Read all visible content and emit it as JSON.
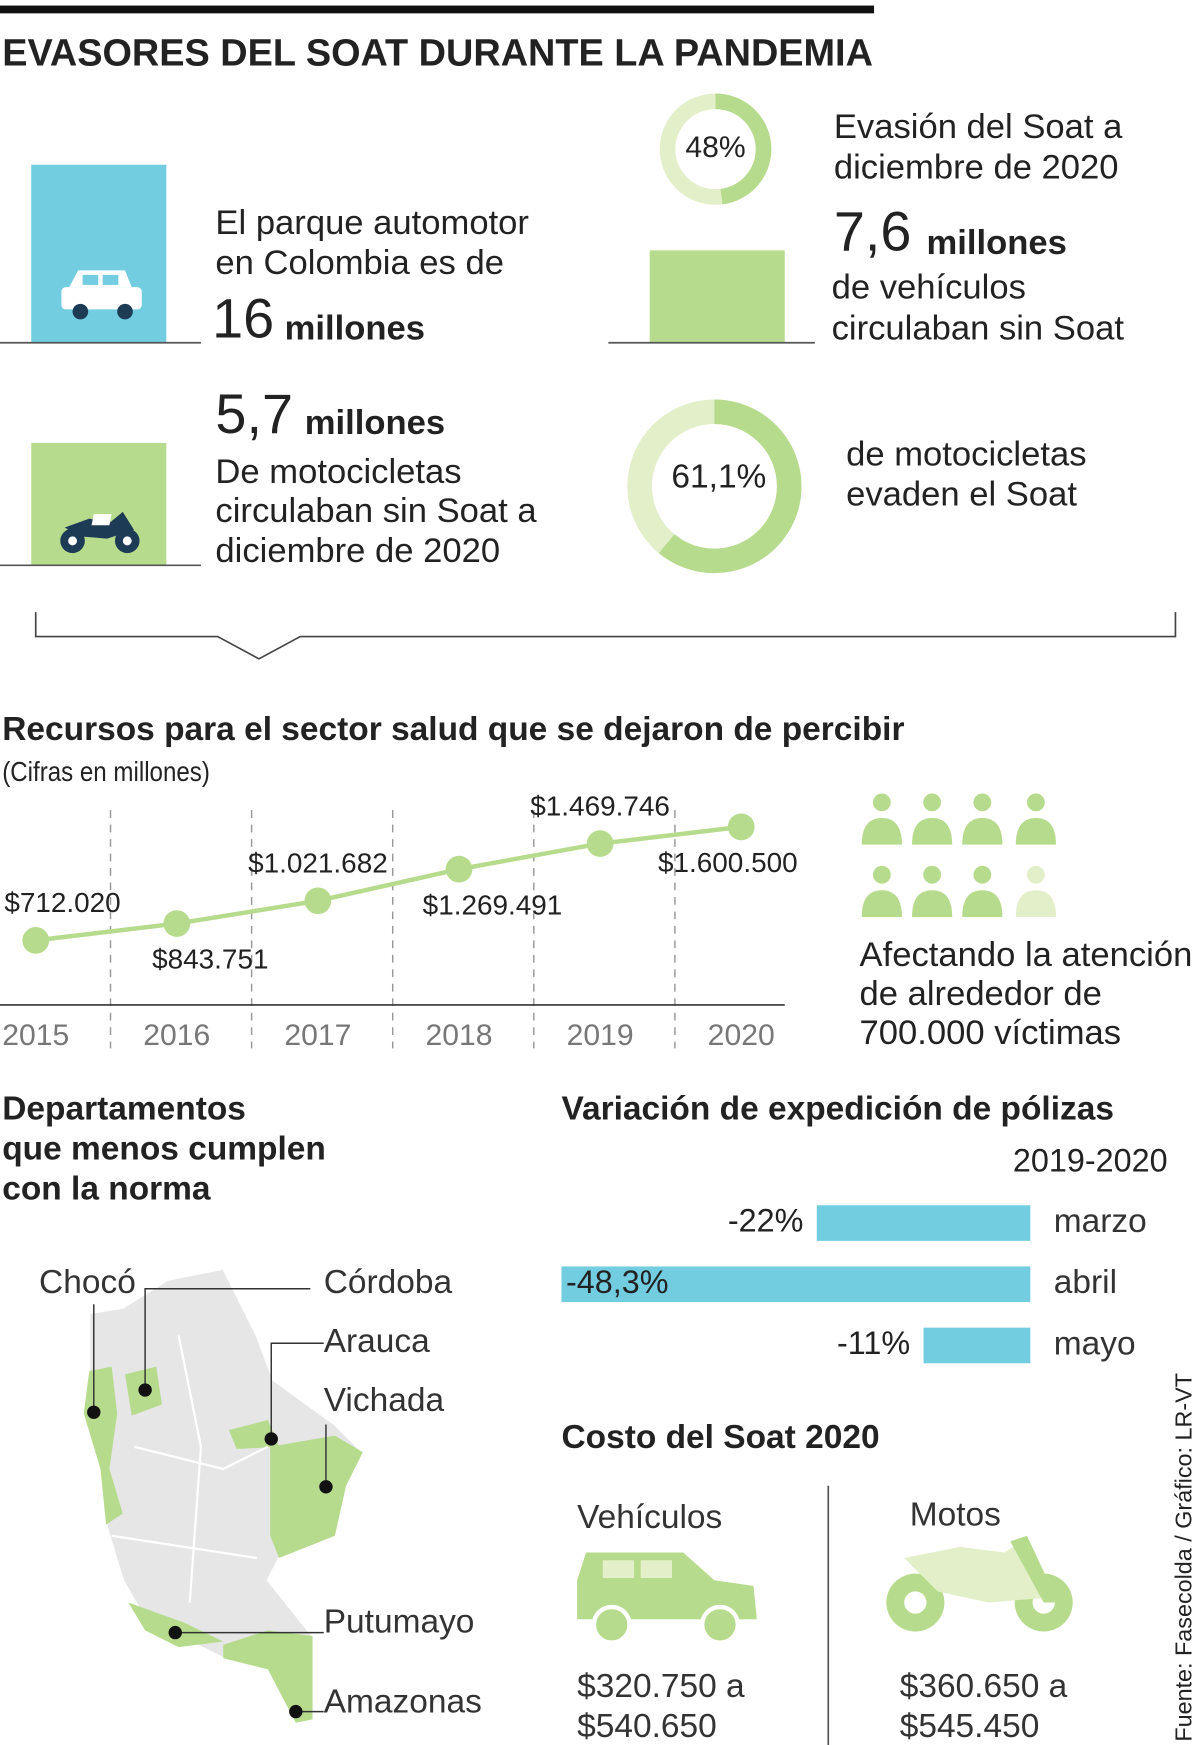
{
  "title": "EVASORES DEL SOAT DURANTE LA PANDEMIA",
  "stats": [
    {
      "text": [
        "El parque automotor",
        "en Colombia es de"
      ],
      "number": "16",
      "unit": "millones"
    },
    {
      "text": [
        "Evasión del Soat a",
        "diciembre de 2020"
      ],
      "donut": {
        "value": 48,
        "label": "48%"
      }
    },
    {
      "number": "7,6",
      "unit": "millones",
      "text": [
        "de vehículos",
        "circulaban sin Soat"
      ]
    },
    {
      "number": "5,7",
      "unit": "millones",
      "text": [
        "De motocicletas",
        "circulaban sin Soat a",
        "diciembre de 2020"
      ]
    },
    {
      "donut": {
        "value": 61.1,
        "label": "61,1%"
      },
      "text": [
        "de motocicletas",
        "evaden el Soat"
      ]
    }
  ],
  "chart_data": [
    {
      "type": "line",
      "title": "Recursos para el sector salud que se dejaron de percibir",
      "subtitle": "(Cifras en millones)",
      "categories": [
        "2015",
        "2016",
        "2017",
        "2018",
        "2019",
        "2020"
      ],
      "values": [
        712020,
        843751,
        1021682,
        1269491,
        1469746,
        1600500
      ],
      "value_labels": [
        "$712.020",
        "$843.751",
        "$1.021.682",
        "$1.269.491",
        "$1.469.746",
        "$1.600.500"
      ],
      "color": "#b7db8c"
    },
    {
      "type": "bar",
      "title": "Variación de expedición de pólizas",
      "subtitle": "2019-2020",
      "categories": [
        "marzo",
        "abril",
        "mayo"
      ],
      "values": [
        -22,
        -48.3,
        -11
      ],
      "value_labels": [
        "-22%",
        "-48,3%",
        "-11%"
      ],
      "color": "#72cde0"
    }
  ],
  "victims": [
    "Afectando la atención",
    "de alrededor de",
    "700.000 víctimas"
  ],
  "departments": {
    "title": [
      "Departamentos",
      "que menos cumplen",
      "con la norma"
    ],
    "names": [
      "Chocó",
      "Córdoba",
      "Arauca",
      "Vichada",
      "Putumayo",
      "Amazonas"
    ]
  },
  "cost": {
    "title": "Costo del Soat 2020",
    "items": [
      {
        "label": "Vehículos",
        "price": [
          "$320.750 a",
          "$540.650"
        ]
      },
      {
        "label": "Motos",
        "price": [
          "$360.650 a",
          "$545.450"
        ]
      }
    ]
  },
  "source": "Fuente: Fasecolda / Gráfico: LR-VT"
}
